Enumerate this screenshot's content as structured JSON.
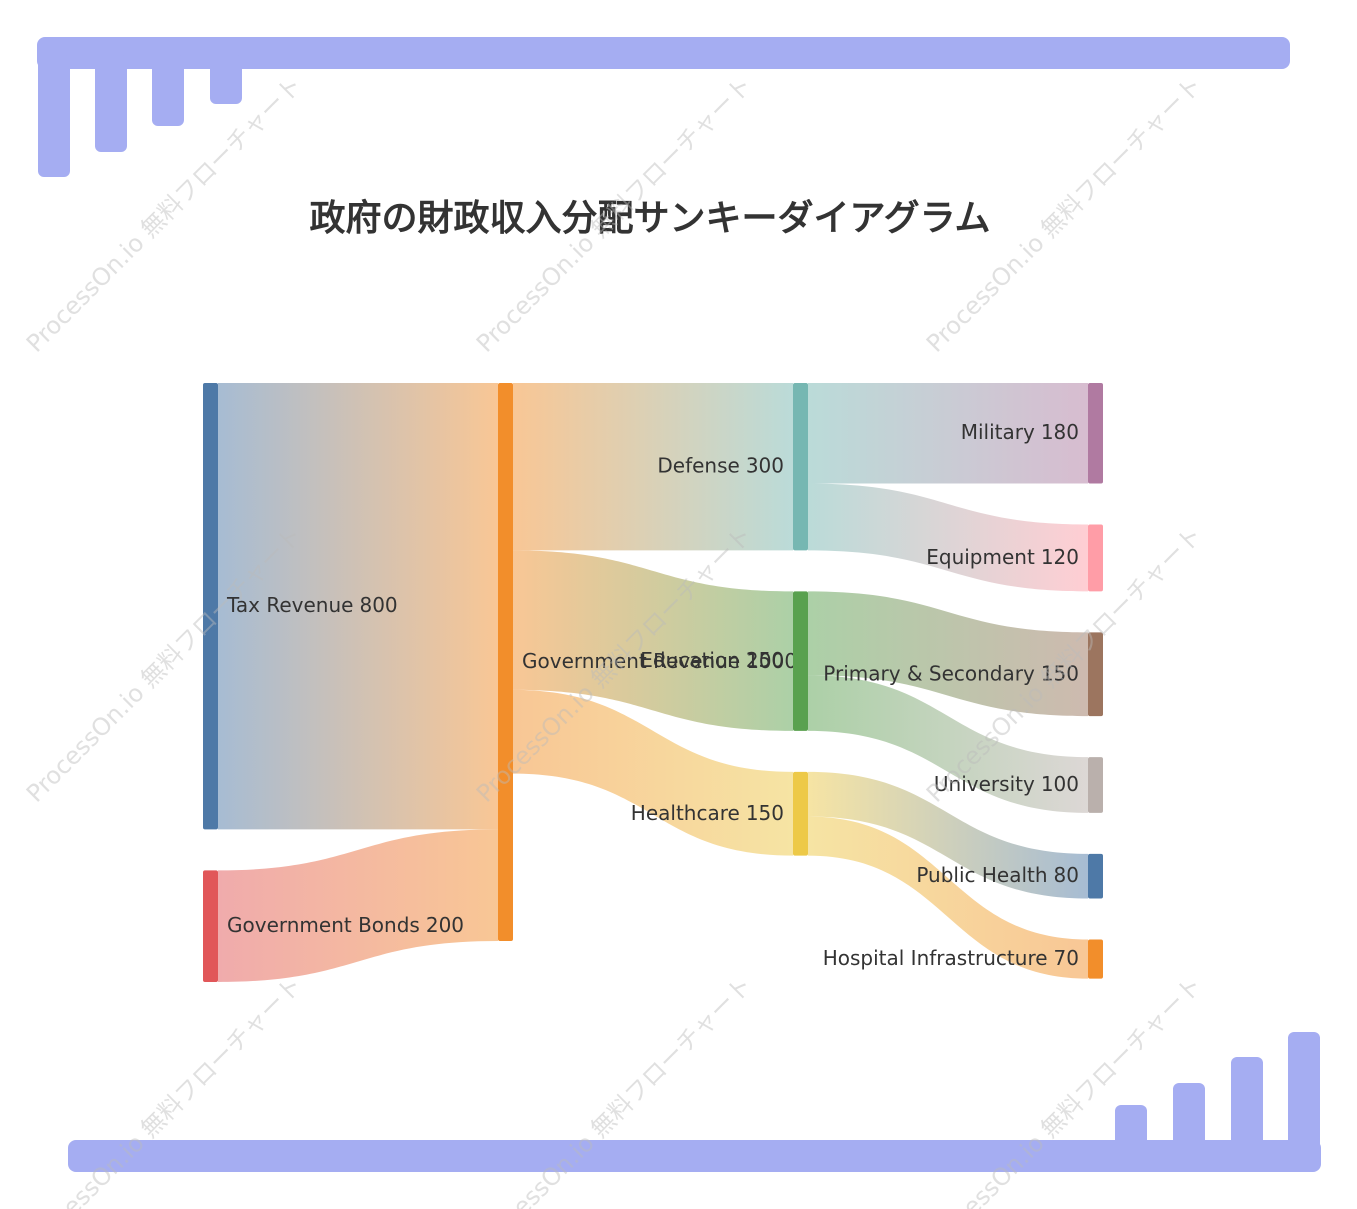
{
  "chart_data": {
    "type": "sankey",
    "title": "政府の財政収入分配サンキーダイアグラム",
    "watermark": "ProcessOn.io 無料フローチャート",
    "nodes": [
      {
        "name": "Tax Revenue",
        "value": 800,
        "color": "#4e79a7"
      },
      {
        "name": "Government Bonds",
        "value": 200,
        "color": "#e15759"
      },
      {
        "name": "Government Revenue",
        "value": 1000,
        "color": "#f28e2b"
      },
      {
        "name": "Defense",
        "value": 300,
        "color": "#76b7b2"
      },
      {
        "name": "Education",
        "value": 250,
        "color": "#59a14f"
      },
      {
        "name": "Healthcare",
        "value": 150,
        "color": "#edc948"
      },
      {
        "name": "Military",
        "value": 180,
        "color": "#b07aa1"
      },
      {
        "name": "Equipment",
        "value": 120,
        "color": "#ff9da7"
      },
      {
        "name": "Primary & Secondary",
        "value": 150,
        "color": "#9c755f"
      },
      {
        "name": "University",
        "value": 100,
        "color": "#bab0ac"
      },
      {
        "name": "Public Health",
        "value": 80,
        "color": "#4e79a7"
      },
      {
        "name": "Hospital Infrastructure",
        "value": 70,
        "color": "#f28e2b"
      }
    ],
    "links": [
      {
        "source": 0,
        "target": 2,
        "value": 800
      },
      {
        "source": 1,
        "target": 2,
        "value": 200
      },
      {
        "source": 2,
        "target": 3,
        "value": 300
      },
      {
        "source": 2,
        "target": 4,
        "value": 250
      },
      {
        "source": 2,
        "target": 5,
        "value": 150
      },
      {
        "source": 3,
        "target": 6,
        "value": 180
      },
      {
        "source": 3,
        "target": 7,
        "value": 120
      },
      {
        "source": 4,
        "target": 8,
        "value": 150
      },
      {
        "source": 4,
        "target": 9,
        "value": 100
      },
      {
        "source": 5,
        "target": 10,
        "value": 80
      },
      {
        "source": 5,
        "target": 11,
        "value": 70
      }
    ]
  }
}
